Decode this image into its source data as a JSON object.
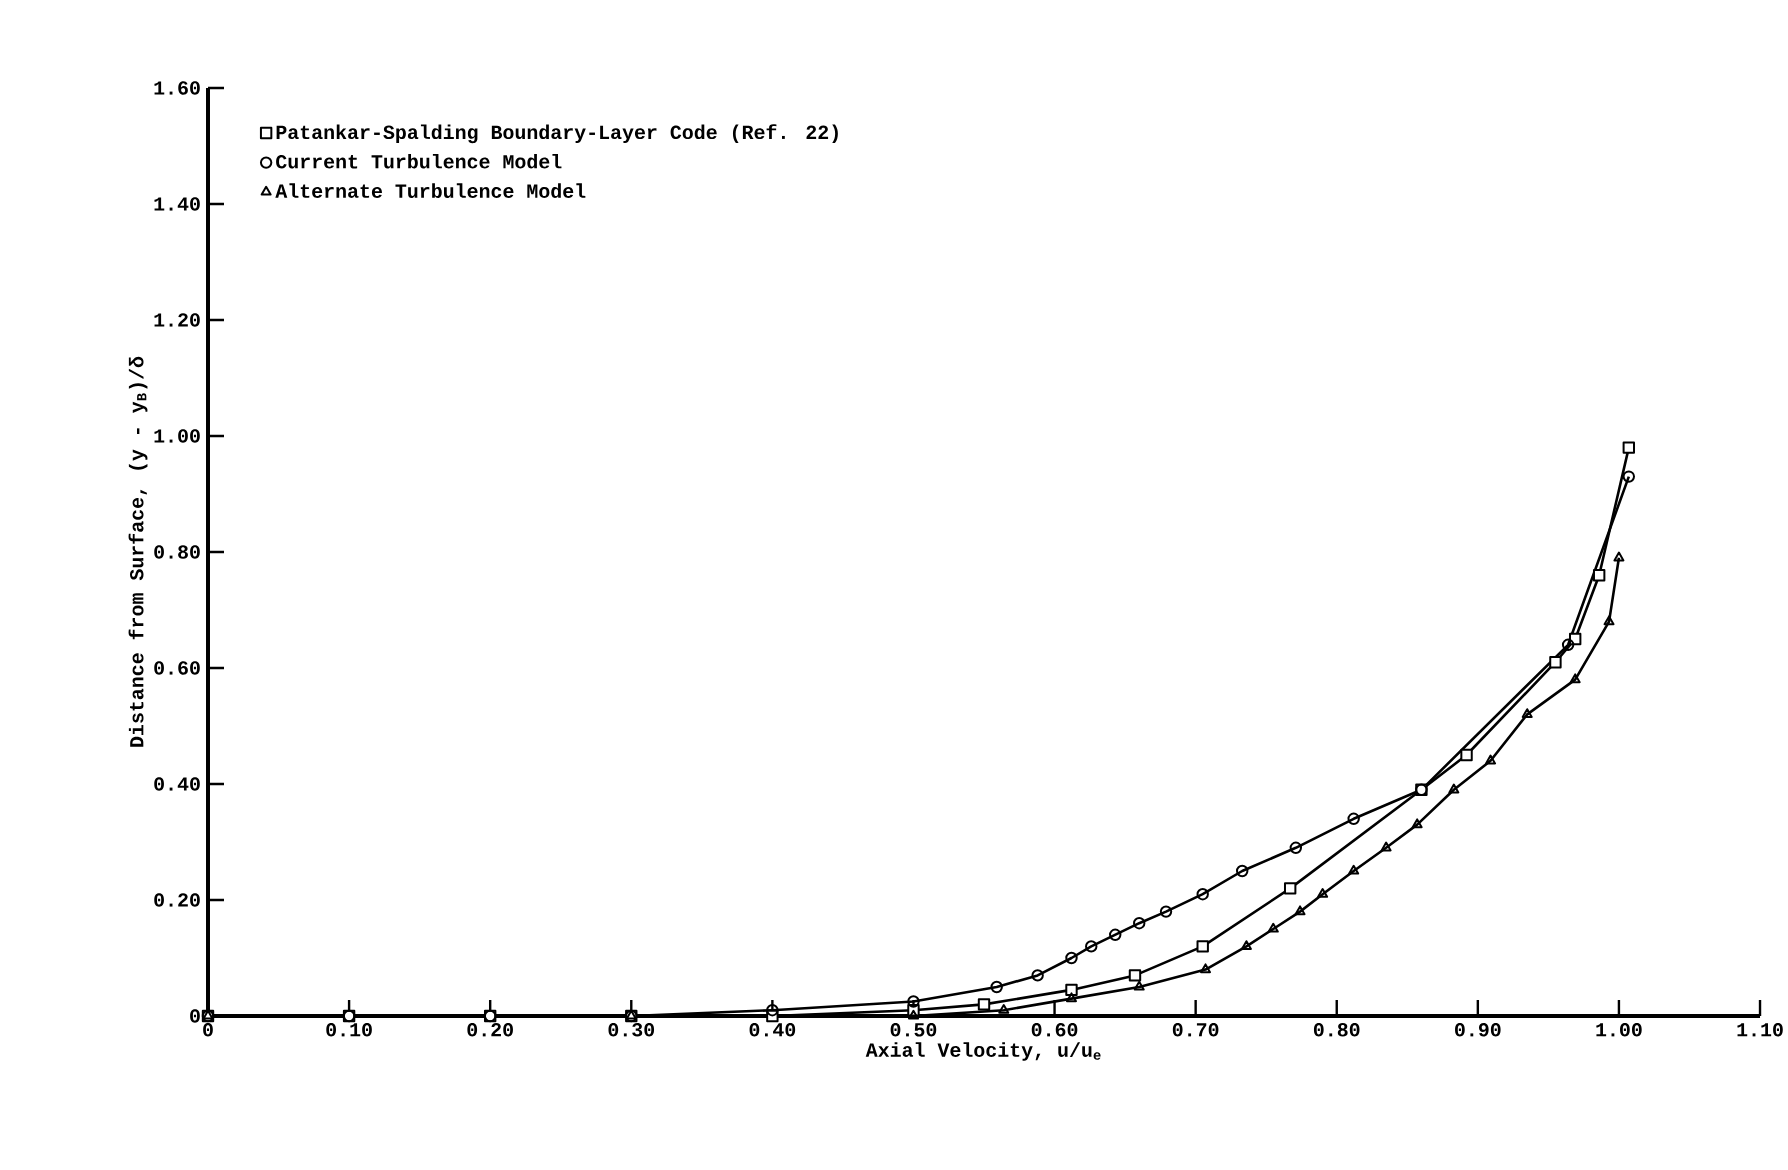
{
  "chart_data": {
    "type": "line",
    "xlabel": "Axial Velocity, u/u$_{e}$",
    "ylabel": "Distance from Surface, (y - y$_{B}$)/δ",
    "xlim": [
      0,
      1.1
    ],
    "ylim": [
      0,
      1.6
    ],
    "xticks": [
      0,
      {
        "value": 0.1,
        "label": "0.10"
      },
      {
        "value": 0.2,
        "label": "0.20"
      },
      {
        "value": 0.3,
        "label": "0.30"
      },
      {
        "value": 0.4,
        "label": "0.40"
      },
      {
        "value": 0.5,
        "label": "0.50"
      },
      {
        "value": 0.6,
        "label": "0.60"
      },
      {
        "value": 0.7,
        "label": "0.70"
      },
      {
        "value": 0.8,
        "label": "0.80"
      },
      {
        "value": 0.9,
        "label": "0.90"
      },
      {
        "value": 1.0,
        "label": "1.00"
      },
      {
        "value": 1.1,
        "label": "1.10"
      }
    ],
    "yticks": [
      0,
      {
        "value": 0.2,
        "label": "0.20"
      },
      {
        "value": 0.4,
        "label": "0.40"
      },
      {
        "value": 0.6,
        "label": "0.60"
      },
      {
        "value": 0.8,
        "label": "0.80"
      },
      {
        "value": 1.0,
        "label": "1.00"
      },
      {
        "value": 1.2,
        "label": "1.20"
      },
      {
        "value": 1.4,
        "label": "1.40"
      },
      {
        "value": 1.6,
        "label": "1.60"
      }
    ],
    "legend": "top left",
    "grid": false,
    "line_style": "solid",
    "series": [
      {
        "name": "Patankar-Spalding Boundary-Layer Code (Ref. 22)",
        "color": "#000000",
        "marker": "square",
        "x": [
          0,
          0.1,
          0.2,
          0.3,
          0.4,
          0.5,
          0.55,
          0.612,
          0.657,
          0.705,
          0.767,
          0.86,
          0.892,
          0.955,
          0.969,
          0.986,
          1.007
        ],
        "values": [
          0,
          0,
          0,
          0,
          0,
          0.01,
          0.02,
          0.045,
          0.07,
          0.12,
          0.22,
          0.39,
          0.45,
          0.61,
          0.65,
          0.76,
          0.98
        ]
      },
      {
        "name": "Current Turbulence Model",
        "color": "#000000",
        "marker": "circle",
        "x": [
          0,
          0.1,
          0.2,
          0.3,
          0.4,
          0.5,
          0.559,
          0.588,
          0.612,
          0.626,
          0.643,
          0.66,
          0.679,
          0.705,
          0.733,
          0.771,
          0.812,
          0.86,
          0.964,
          1.007
        ],
        "values": [
          0,
          0,
          0,
          0,
          0.01,
          0.025,
          0.05,
          0.07,
          0.1,
          0.12,
          0.14,
          0.16,
          0.18,
          0.21,
          0.25,
          0.29,
          0.34,
          0.39,
          0.64,
          0.93
        ]
      },
      {
        "name": "Alternate Turbulence Model",
        "color": "#000000",
        "marker": "triangle",
        "x": [
          0,
          0.3,
          0.5,
          0.564,
          0.612,
          0.66,
          0.707,
          0.736,
          0.755,
          0.774,
          0.79,
          0.812,
          0.835,
          0.857,
          0.883,
          0.909,
          0.935,
          0.969,
          0.993,
          1.0
        ],
        "values": [
          0,
          0,
          0,
          0.01,
          0.03,
          0.05,
          0.08,
          0.12,
          0.15,
          0.18,
          0.21,
          0.25,
          0.29,
          0.33,
          0.39,
          0.44,
          0.52,
          0.58,
          0.68,
          0.79
        ]
      }
    ]
  }
}
